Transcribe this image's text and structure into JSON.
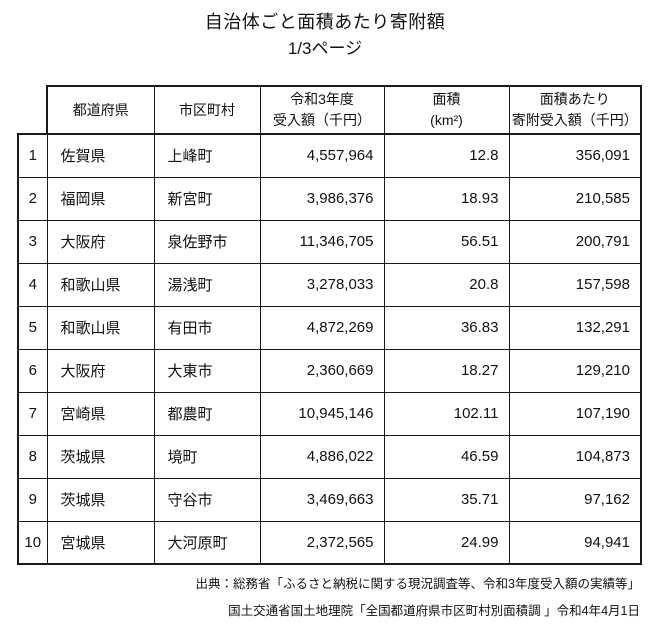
{
  "header": {
    "title": "自治体ごと面積あたり寄附額",
    "page_indicator": "1/3ページ"
  },
  "table": {
    "columns": [
      "都道府県",
      "市区町村",
      "令和3年度\n受入額（千円）",
      "面積\n(km²)",
      "面積あたり\n寄附受入額（千円）"
    ],
    "rows": [
      {
        "rank": "1",
        "prefecture": "佐賀県",
        "municipality": "上峰町",
        "amount": "4,557,964",
        "area": "12.8",
        "per_area": "356,091"
      },
      {
        "rank": "2",
        "prefecture": "福岡県",
        "municipality": "新宮町",
        "amount": "3,986,376",
        "area": "18.93",
        "per_area": "210,585"
      },
      {
        "rank": "3",
        "prefecture": "大阪府",
        "municipality": "泉佐野市",
        "amount": "11,346,705",
        "area": "56.51",
        "per_area": "200,791"
      },
      {
        "rank": "4",
        "prefecture": "和歌山県",
        "municipality": "湯浅町",
        "amount": "3,278,033",
        "area": "20.8",
        "per_area": "157,598"
      },
      {
        "rank": "5",
        "prefecture": "和歌山県",
        "municipality": "有田市",
        "amount": "4,872,269",
        "area": "36.83",
        "per_area": "132,291"
      },
      {
        "rank": "6",
        "prefecture": "大阪府",
        "municipality": "大東市",
        "amount": "2,360,669",
        "area": "18.27",
        "per_area": "129,210"
      },
      {
        "rank": "7",
        "prefecture": "宮崎県",
        "municipality": "都農町",
        "amount": "10,945,146",
        "area": "102.11",
        "per_area": "107,190"
      },
      {
        "rank": "8",
        "prefecture": "茨城県",
        "municipality": "境町",
        "amount": "4,886,022",
        "area": "46.59",
        "per_area": "104,873"
      },
      {
        "rank": "9",
        "prefecture": "茨城県",
        "municipality": "守谷市",
        "amount": "3,469,663",
        "area": "35.71",
        "per_area": "97,162"
      },
      {
        "rank": "10",
        "prefecture": "宮城県",
        "municipality": "大河原町",
        "amount": "2,372,565",
        "area": "24.99",
        "per_area": "94,941"
      }
    ]
  },
  "footer": {
    "sources": [
      "出典：総務省「ふるさと納税に関する現況調査等、令和3年度受入額の実績等」",
      "国土交通省国土地理院「全国都道府県市区町村別面積調 」令和4年4月1日"
    ]
  },
  "colors": {
    "text": "#111111",
    "border": "#1a1a1a",
    "background": "#ffffff"
  }
}
